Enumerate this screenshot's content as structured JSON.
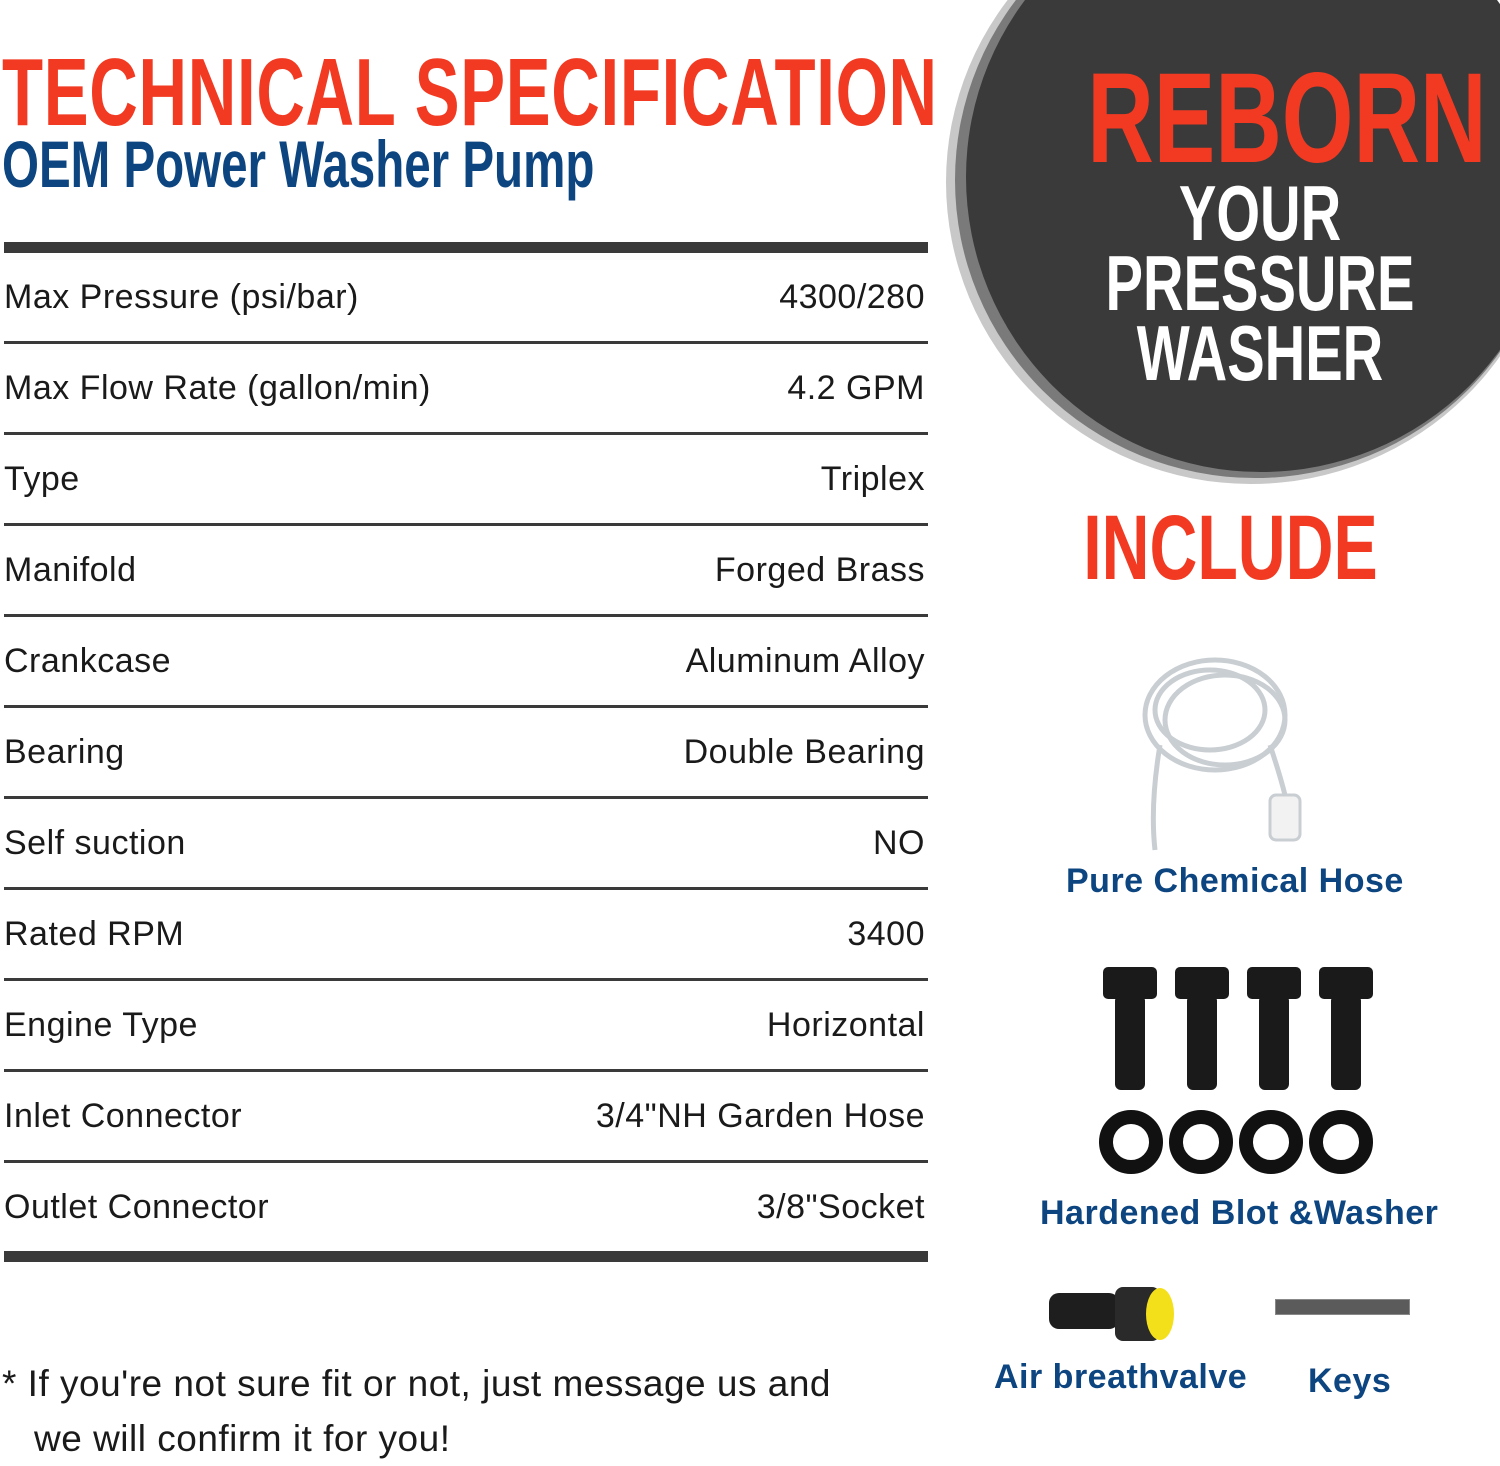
{
  "header": {
    "title": "TECHNICAL SPECIFICATION",
    "subtitle": "OEM Power Washer Pump"
  },
  "specs": [
    {
      "label": "Max Pressure (psi/bar)",
      "value": "4300/280"
    },
    {
      "label": "Max Flow Rate (gallon/min)",
      "value": "4.2 GPM"
    },
    {
      "label": "Type",
      "value": "Triplex"
    },
    {
      "label": "Manifold",
      "value": "Forged Brass"
    },
    {
      "label": "Crankcase",
      "value": "Aluminum Alloy"
    },
    {
      "label": "Bearing",
      "value": "Double Bearing"
    },
    {
      "label": "Self suction",
      "value": "NO"
    },
    {
      "label": "Rated RPM",
      "value": "3400"
    },
    {
      "label": "Engine Type",
      "value": "Horizontal"
    },
    {
      "label": "Inlet Connector",
      "value": "3/4\"NH Garden Hose"
    },
    {
      "label": "Outlet Connector",
      "value": "3/8\"Socket"
    }
  ],
  "note": {
    "line1": "*  If you're not sure fit or not, just message us and",
    "line2": "we will confirm it for you!"
  },
  "badge": {
    "line1": "REBORN",
    "line2": "YOUR",
    "line3": "PRESSURE",
    "line4": "WASHER"
  },
  "include": {
    "heading": "INCLUDE",
    "items": [
      {
        "label": "Pure Chemical Hose",
        "icon": "chemical-hose-image"
      },
      {
        "label": "Hardened Blot &Washer",
        "icon": "bolts-washers-image"
      },
      {
        "label": "Air breathvalve",
        "icon": "air-breather-valve-image"
      },
      {
        "label": "Keys",
        "icon": "key-image"
      }
    ]
  },
  "colors": {
    "accent_red": "#f23a22",
    "brand_blue": "#0c4580",
    "dark_gray": "#3a3a3a"
  }
}
